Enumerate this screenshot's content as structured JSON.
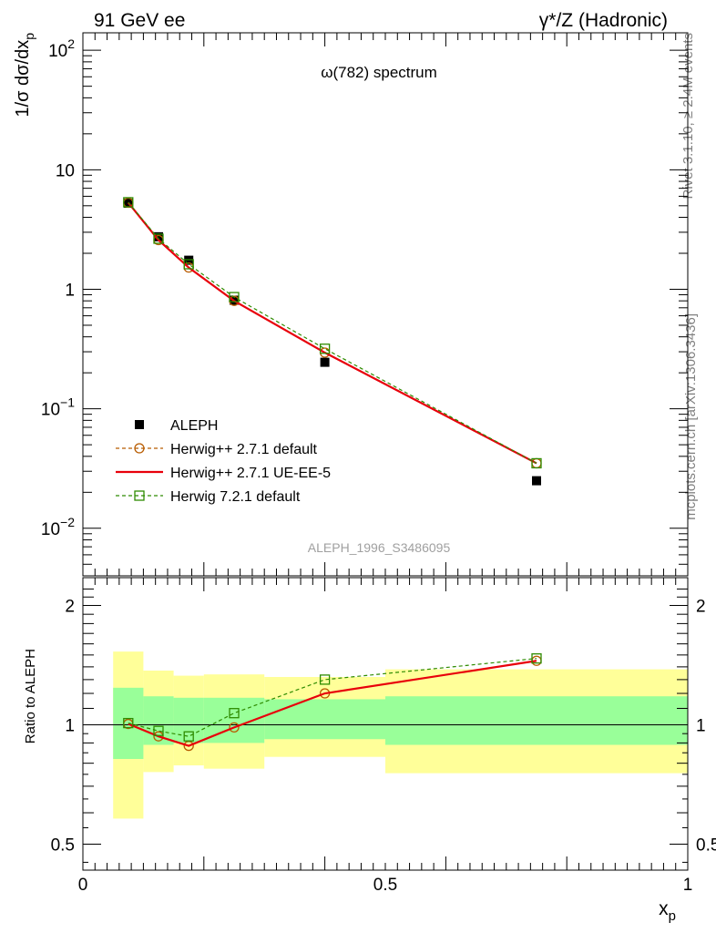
{
  "header": {
    "left": "91 GeV ee",
    "right": "γ*/Z (Hadronic)"
  },
  "side_labels": {
    "rivet": "Rivet 3.1.10, ≥ 2.4M events",
    "mcplots": "mcplots.cern.ch [arXiv:1306.3436]"
  },
  "chart_data": [
    {
      "type": "line",
      "panel": "main",
      "title": "ω(782) spectrum",
      "ylabel": "1/σ dσ/dx_p",
      "xlabel": "",
      "analysis_tag": "ALEPH_1996_S3486095",
      "xlim": [
        0,
        1
      ],
      "ylim": [
        0.004,
        140
      ],
      "y_scale": "log",
      "legend_position": "lower-left",
      "x_tick_labels": [
        "0",
        "0.5",
        "1"
      ],
      "y_tick_labels": [
        "10^-2",
        "10^-1",
        "1",
        "10",
        "10^2"
      ],
      "y_tick_values": [
        0.01,
        0.1,
        1,
        10,
        100
      ],
      "series": [
        {
          "name": "ALEPH",
          "style": "data",
          "color": "#000000",
          "marker": "filled-square",
          "x": [
            0.075,
            0.125,
            0.175,
            0.25,
            0.4,
            0.75
          ],
          "y": [
            5.25,
            2.75,
            1.75,
            0.81,
            0.245,
            0.025
          ]
        },
        {
          "name": "Herwig++ 2.7.1 default",
          "style": "dashed",
          "color": "#b85c00",
          "marker": "open-circle",
          "x": [
            0.075,
            0.125,
            0.175,
            0.25,
            0.4,
            0.75
          ],
          "y": [
            5.3,
            2.58,
            1.52,
            0.8,
            0.295,
            0.035
          ]
        },
        {
          "name": "Herwig++ 2.7.1 UE-EE-5",
          "style": "solid",
          "color": "#e8000b",
          "marker": "none",
          "x": [
            0.075,
            0.125,
            0.175,
            0.25,
            0.4,
            0.75
          ],
          "y": [
            5.3,
            2.58,
            1.52,
            0.8,
            0.295,
            0.035
          ]
        },
        {
          "name": "Herwig 7.2.1 default",
          "style": "dashed",
          "color": "#2e8b00",
          "marker": "open-square",
          "x": [
            0.075,
            0.125,
            0.175,
            0.25,
            0.4,
            0.75
          ],
          "y": [
            5.35,
            2.65,
            1.62,
            0.86,
            0.318,
            0.035
          ]
        }
      ]
    },
    {
      "type": "line",
      "panel": "ratio",
      "ylabel": "Ratio to ALEPH",
      "xlabel": "x_p",
      "xlim": [
        0,
        1
      ],
      "ylim": [
        0.43,
        2.35
      ],
      "y_scale": "log",
      "x_tick_labels": [
        "0",
        "0.5",
        "1"
      ],
      "y_tick_labels": [
        "0.5",
        "1",
        "2"
      ],
      "y_tick_values": [
        0.5,
        1,
        2
      ],
      "uncertainty_bands": {
        "bins": [
          [
            0.05,
            0.1
          ],
          [
            0.1,
            0.15
          ],
          [
            0.15,
            0.2
          ],
          [
            0.2,
            0.3
          ],
          [
            0.3,
            0.5
          ],
          [
            0.5,
            1.0
          ]
        ],
        "stat": {
          "color": "#99ff99",
          "lo": [
            0.82,
            0.89,
            0.9,
            0.9,
            0.92,
            0.89
          ],
          "hi": [
            1.24,
            1.18,
            1.17,
            1.17,
            1.16,
            1.18
          ]
        },
        "total": {
          "color": "#ffff99",
          "lo": [
            0.58,
            0.76,
            0.79,
            0.775,
            0.83,
            0.755
          ],
          "hi": [
            1.53,
            1.37,
            1.33,
            1.34,
            1.32,
            1.38
          ]
        }
      },
      "series": [
        {
          "name": "Herwig++ 2.7.1 default",
          "style": "dashed",
          "color": "#b85c00",
          "marker": "open-circle",
          "x": [
            0.075,
            0.125,
            0.175,
            0.25,
            0.4,
            0.75
          ],
          "y": [
            1.005,
            0.935,
            0.885,
            0.985,
            1.2,
            1.45
          ]
        },
        {
          "name": "Herwig++ 2.7.1 UE-EE-5",
          "style": "solid",
          "color": "#e8000b",
          "marker": "none",
          "x": [
            0.075,
            0.125,
            0.175,
            0.25,
            0.4,
            0.75
          ],
          "y": [
            1.005,
            0.935,
            0.885,
            0.985,
            1.2,
            1.45
          ]
        },
        {
          "name": "Herwig 7.2.1 default",
          "style": "dashed",
          "color": "#2e8b00",
          "marker": "open-square",
          "x": [
            0.075,
            0.125,
            0.175,
            0.25,
            0.4,
            0.75
          ],
          "y": [
            1.01,
            0.965,
            0.935,
            1.07,
            1.3,
            1.47
          ]
        }
      ]
    }
  ]
}
